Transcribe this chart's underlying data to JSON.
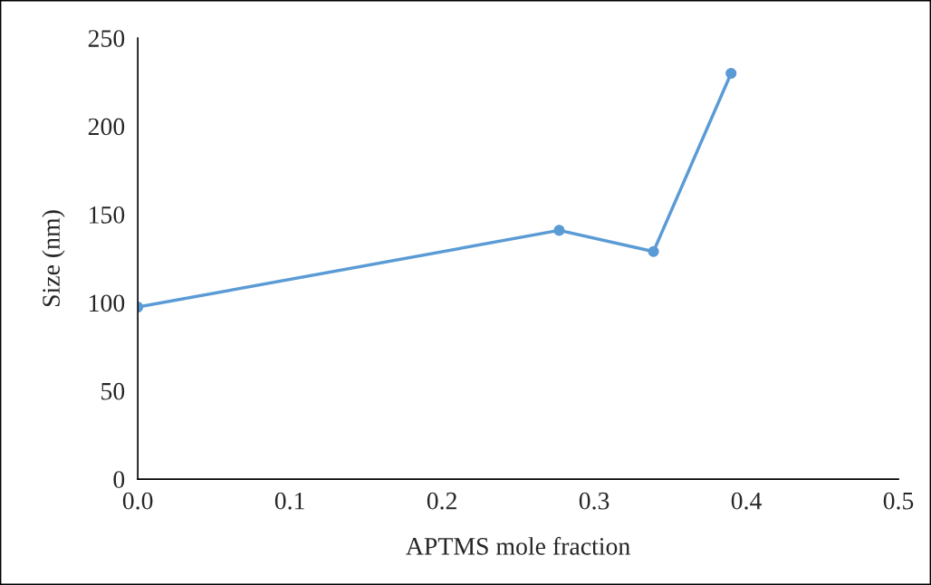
{
  "chart_data": {
    "type": "line",
    "xlabel": "APTMS mole fraction",
    "ylabel": "Size (nm)",
    "x": [
      0.0,
      0.277,
      0.339,
      0.39
    ],
    "series": [
      {
        "color": "#5b9bd5",
        "values": [
          97.5,
          141,
          129,
          230
        ]
      }
    ],
    "xlim": [
      0,
      0.5
    ],
    "xticks": [
      {
        "value": 0,
        "label": "0.0"
      },
      0.1,
      0.2,
      0.3,
      0.4,
      0.5
    ],
    "ylim": [
      0,
      250
    ],
    "yticks": [
      0,
      50,
      100,
      150,
      200,
      250
    ],
    "grid": false,
    "marker": "circle",
    "line_style": "solid",
    "legend": false
  }
}
